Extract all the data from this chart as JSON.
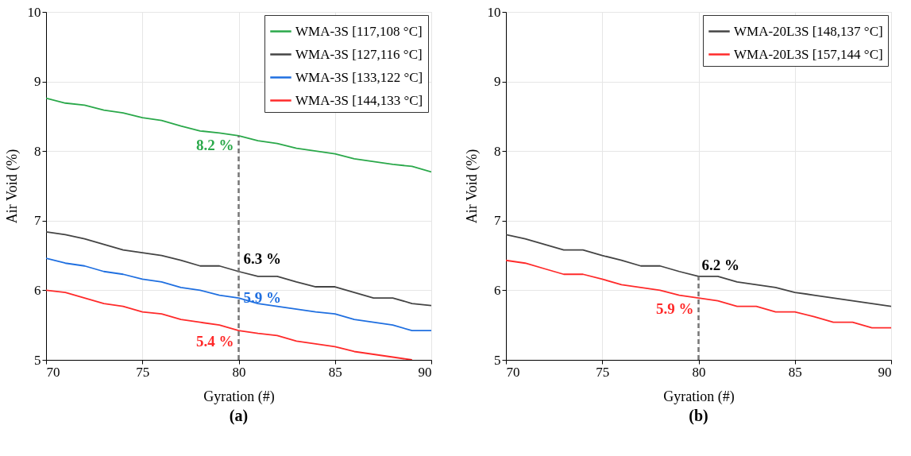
{
  "chart_data": [
    {
      "type": "line",
      "xlabel": "Gyration (#)",
      "ylabel": "Air Void (%)",
      "xlim": [
        70,
        90
      ],
      "xticks": [
        70,
        75,
        80,
        85,
        90
      ],
      "ylim": [
        5,
        10
      ],
      "yticks": [
        5,
        6,
        7,
        8,
        9,
        10
      ],
      "grid": true,
      "legend": "top right",
      "line_style": "solid",
      "marker": "none",
      "x": [
        70,
        71,
        72,
        73,
        74,
        75,
        76,
        77,
        78,
        79,
        80,
        81,
        82,
        83,
        84,
        85,
        86,
        87,
        88,
        89,
        90
      ],
      "series": [
        {
          "name": "WMA-3S [117,108 °C]",
          "color": "#2aa84a",
          "values": [
            8.76,
            8.69,
            8.66,
            8.59,
            8.55,
            8.48,
            8.44,
            8.36,
            8.29,
            8.26,
            8.22,
            8.15,
            8.11,
            8.04,
            8.0,
            7.96,
            7.89,
            7.85,
            7.81,
            7.78,
            7.7
          ]
        },
        {
          "name": "WMA-3S [127,116 °C]",
          "color": "#444444",
          "values": [
            6.84,
            6.8,
            6.74,
            6.66,
            6.58,
            6.54,
            6.5,
            6.43,
            6.35,
            6.35,
            6.27,
            6.2,
            6.2,
            6.12,
            6.05,
            6.05,
            5.97,
            5.89,
            5.89,
            5.81,
            5.78
          ]
        },
        {
          "name": "WMA-3S [133,122 °C]",
          "color": "#1f6fe0",
          "values": [
            6.46,
            6.39,
            6.35,
            6.27,
            6.23,
            6.16,
            6.12,
            6.04,
            6.0,
            5.93,
            5.89,
            5.81,
            5.77,
            5.73,
            5.69,
            5.66,
            5.58,
            5.54,
            5.5,
            5.42,
            5.42
          ]
        },
        {
          "name": "WMA-3S [144,133 °C]",
          "color": "#ff2a2a",
          "values": [
            6.0,
            5.97,
            5.89,
            5.81,
            5.77,
            5.69,
            5.66,
            5.58,
            5.54,
            5.5,
            5.42,
            5.38,
            5.35,
            5.27,
            5.23,
            5.19,
            5.12,
            5.08,
            5.04,
            5.0,
            null
          ]
        }
      ],
      "ref_lines": [
        {
          "axis": "x",
          "value": 80,
          "color": "#777777",
          "line_style": "dashed"
        }
      ],
      "annotations": [
        "8.2 %",
        "6.3 %",
        "5.9 %",
        "5.4 %",
        "(a)"
      ]
    },
    {
      "type": "line",
      "xlabel": "Gyration (#)",
      "ylabel": "Air Void (%)",
      "xlim": [
        70,
        90
      ],
      "xticks": [
        70,
        75,
        80,
        85,
        90
      ],
      "ylim": [
        5,
        10
      ],
      "yticks": [
        5,
        6,
        7,
        8,
        9,
        10
      ],
      "grid": true,
      "legend": "top right",
      "line_style": "solid",
      "marker": "none",
      "x": [
        70,
        71,
        72,
        73,
        74,
        75,
        76,
        77,
        78,
        79,
        80,
        81,
        82,
        83,
        84,
        85,
        86,
        87,
        88,
        89,
        90
      ],
      "series": [
        {
          "name": "WMA-20L3S [148,137 °C]",
          "color": "#444444",
          "values": [
            6.8,
            6.74,
            6.66,
            6.58,
            6.58,
            6.5,
            6.43,
            6.35,
            6.35,
            6.27,
            6.2,
            6.2,
            6.12,
            6.08,
            6.04,
            5.97,
            5.93,
            5.89,
            5.85,
            5.81,
            5.77
          ]
        },
        {
          "name": "WMA-20L3S [157,144 °C]",
          "color": "#ff2a2a",
          "values": [
            6.43,
            6.39,
            6.31,
            6.23,
            6.23,
            6.16,
            6.08,
            6.04,
            6.0,
            5.93,
            5.89,
            5.85,
            5.77,
            5.77,
            5.69,
            5.69,
            5.62,
            5.54,
            5.54,
            5.46,
            5.46
          ]
        }
      ],
      "ref_lines": [
        {
          "axis": "x",
          "value": 80,
          "color": "#777777",
          "line_style": "dashed"
        }
      ],
      "annotations": [
        "6.2 %",
        "5.9 %",
        "(b)"
      ]
    }
  ]
}
